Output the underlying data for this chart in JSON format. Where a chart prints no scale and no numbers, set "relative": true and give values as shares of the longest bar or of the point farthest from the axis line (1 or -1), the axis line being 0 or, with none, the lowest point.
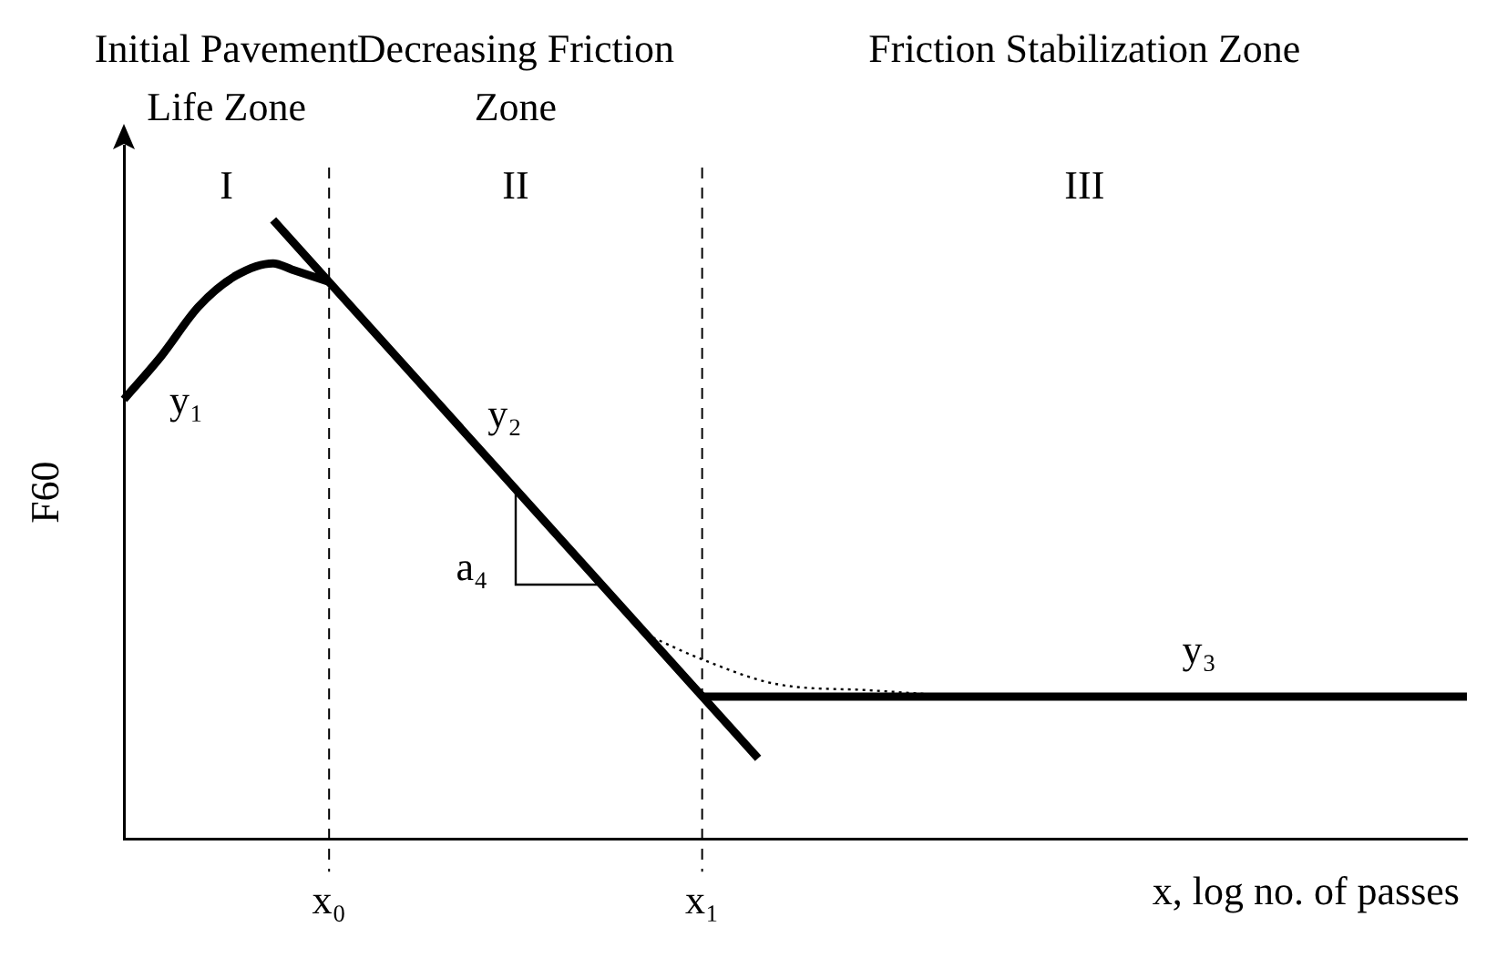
{
  "chart_data": {
    "type": "line",
    "relative": true,
    "ylabel": "F60",
    "xlabel": "x, log no. of passes",
    "legend": false,
    "grid": false,
    "marker": "none",
    "line_style": "solid",
    "categories": [
      null,
      null,
      null,
      null,
      null,
      null,
      null,
      null,
      null,
      null,
      null,
      "x₀",
      null,
      null,
      null,
      null,
      null,
      null,
      null,
      null,
      null,
      null,
      null,
      null,
      null,
      null,
      null,
      null,
      null,
      null,
      null,
      "x₁",
      null,
      null,
      null,
      null,
      null,
      null,
      null,
      null,
      null,
      null,
      null,
      null,
      null,
      null,
      null,
      null,
      null,
      null,
      null,
      null,
      null,
      null,
      null,
      null,
      null,
      null,
      null,
      null,
      null,
      null,
      null,
      null,
      null,
      null,
      null,
      null,
      null,
      null,
      null,
      null,
      null
    ],
    "series": [
      {
        "name": "y₁",
        "color": "#000000",
        "values": [
          0.71,
          null,
          0.78,
          null,
          0.86,
          null,
          0.91,
          null,
          0.93,
          0.92,
          null,
          0.9,
          null,
          null,
          null,
          null,
          null,
          null,
          null,
          null,
          null,
          null,
          null,
          null,
          null,
          null,
          null,
          null,
          null,
          null,
          null,
          null,
          null,
          null,
          null,
          null,
          null,
          null,
          null,
          null,
          null,
          null,
          null,
          null,
          null,
          null,
          null,
          null,
          null,
          null,
          null,
          null,
          null,
          null,
          null,
          null,
          null,
          null,
          null,
          null,
          null,
          null,
          null,
          null,
          null,
          null,
          null,
          null,
          null,
          null,
          null,
          null,
          null
        ]
      },
      {
        "name": "y₂",
        "color": "#000000",
        "values": [
          null,
          null,
          null,
          null,
          null,
          null,
          null,
          null,
          1.0,
          null,
          null,
          null,
          null,
          null,
          null,
          null,
          null,
          null,
          null,
          null,
          null,
          null,
          null,
          null,
          null,
          null,
          null,
          null,
          null,
          null,
          null,
          null,
          null,
          null,
          0.13,
          null,
          null,
          null,
          null,
          null,
          null,
          null,
          null,
          null,
          null,
          null,
          null,
          null,
          null,
          null,
          null,
          null,
          null,
          null,
          null,
          null,
          null,
          null,
          null,
          null,
          null,
          null,
          null,
          null,
          null,
          null,
          null,
          null,
          null,
          null,
          null,
          null,
          null
        ]
      },
      {
        "name": "y₃",
        "color": "#000000",
        "values": [
          null,
          null,
          null,
          null,
          null,
          null,
          null,
          null,
          null,
          null,
          null,
          null,
          null,
          null,
          null,
          null,
          null,
          null,
          null,
          null,
          null,
          null,
          null,
          null,
          null,
          null,
          null,
          null,
          null,
          null,
          null,
          0.23,
          null,
          null,
          null,
          null,
          null,
          null,
          null,
          null,
          null,
          null,
          null,
          null,
          null,
          null,
          null,
          null,
          null,
          null,
          null,
          null,
          null,
          null,
          null,
          null,
          null,
          null,
          null,
          null,
          null,
          null,
          null,
          null,
          null,
          null,
          null,
          null,
          null,
          null,
          null,
          null,
          0.23
        ]
      },
      {
        "color": "#000000",
        "line_style": "dotted",
        "values": [
          null,
          null,
          null,
          null,
          null,
          null,
          null,
          null,
          null,
          null,
          null,
          null,
          null,
          null,
          null,
          null,
          null,
          null,
          null,
          null,
          null,
          null,
          null,
          null,
          null,
          null,
          null,
          null,
          0.33,
          null,
          null,
          0.29,
          null,
          null,
          null,
          0.25,
          null,
          null,
          null,
          null,
          0.24,
          null,
          null,
          null,
          null,
          0.23,
          null,
          null,
          null,
          null,
          null,
          null,
          null,
          null,
          null,
          null,
          null,
          null,
          null,
          null,
          null,
          null,
          null,
          null,
          null,
          null,
          null,
          null,
          null,
          null,
          null,
          null,
          null
        ]
      }
    ],
    "ref_lines": [
      {
        "axis": "x",
        "value": "x₀",
        "line_style": "dashed",
        "color": "#000000"
      },
      {
        "axis": "x",
        "value": "x₁",
        "line_style": "dashed",
        "color": "#000000"
      }
    ],
    "annotations": [
      "Initial Pavement Life Zone",
      "Decreasing Friction Zone",
      "Friction Stabilization Zone",
      "I",
      "II",
      "III",
      "a₄"
    ]
  }
}
